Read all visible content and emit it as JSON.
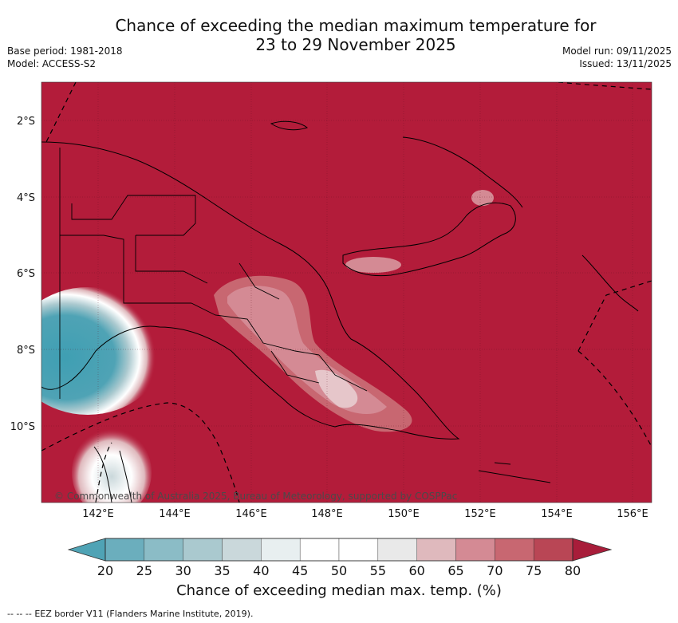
{
  "title_line1": "Chance of exceeding the median maximum temperature for",
  "title_line2": "23 to 29 November 2025",
  "header": {
    "base_period": "Base period: 1981-2018",
    "model": "Model: ACCESS-S2",
    "model_run": "Model run: 09/11/2025",
    "issued": "Issued: 13/11/2025"
  },
  "map": {
    "background_color": "#b31c3a",
    "lat_labels": [
      "2°S",
      "4°S",
      "6°S",
      "8°S",
      "10°S"
    ],
    "lon_labels": [
      "142°E",
      "144°E",
      "146°E",
      "148°E",
      "150°E",
      "152°E",
      "154°E",
      "156°E"
    ],
    "copyright": "© Commonwealth of Australia 2025, Bureau of Meteorology, supported by COSPPac"
  },
  "colorbar": {
    "ticks": [
      "20",
      "25",
      "30",
      "35",
      "40",
      "45",
      "50",
      "55",
      "60",
      "65",
      "70",
      "75",
      "80"
    ],
    "colors": [
      "#4fa3b5",
      "#6baebd",
      "#8bbcc6",
      "#aac9cf",
      "#cad8db",
      "#e8eff0",
      "#ffffff",
      "#ffffff",
      "#e9e9e9",
      "#dfb9bd",
      "#d48a94",
      "#c86771",
      "#b94655",
      "#a81d3a"
    ],
    "caption": "Chance of exceeding median max. temp. (%)"
  },
  "footnote": {
    "dashes": "--  --  --",
    "text": "EEZ border V11 (Flanders Marine Institute, 2019)."
  }
}
